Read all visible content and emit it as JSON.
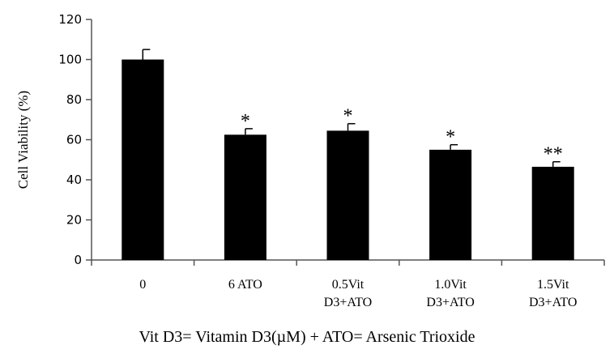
{
  "chart_data": {
    "type": "bar",
    "title": "",
    "xlabel": "",
    "ylabel": "Cell Viability (%)",
    "ylim": [
      0,
      120
    ],
    "yticks": [
      0,
      20,
      40,
      60,
      80,
      100,
      120
    ],
    "grid": false,
    "categories": [
      [
        "0"
      ],
      [
        "6 ATO"
      ],
      [
        "0.5Vit",
        "D3+ATO"
      ],
      [
        "1.0Vit",
        "D3+ATO"
      ],
      [
        "1.5Vit",
        "D3+ATO"
      ]
    ],
    "values": [
      100,
      62.5,
      64.5,
      55,
      46.5
    ],
    "error": [
      5,
      3,
      3.5,
      2.5,
      2.5
    ],
    "annotations": [
      "",
      "*",
      "*",
      "*",
      "**"
    ],
    "bar_color": "#000000"
  },
  "footnote": "Vit D3= Vitamin D3(µM) + ATO= Arsenic Trioxide"
}
